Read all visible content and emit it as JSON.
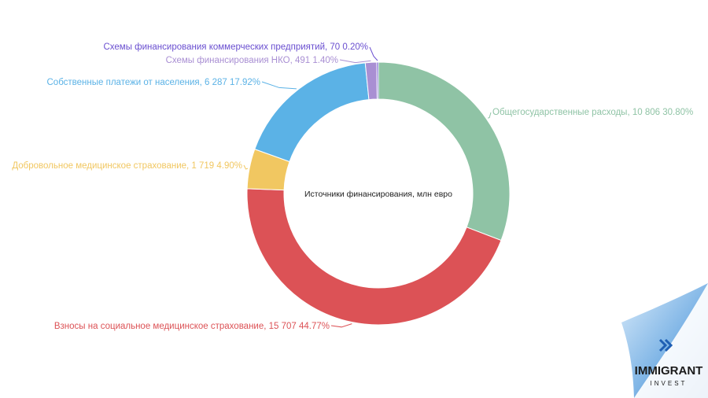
{
  "chart_data": {
    "type": "pie",
    "donut": true,
    "title": "Источники финансирования, млн евро",
    "slices": [
      {
        "name": "Общегосударственные расходы",
        "value": 10806,
        "value_label": "10 806",
        "percent": 30.8,
        "percent_label": "30.80%",
        "color": "#8fc3a5"
      },
      {
        "name": "Взносы на социальное медицинское страхование",
        "value": 15707,
        "value_label": "15 707",
        "percent": 44.77,
        "percent_label": "44.77%",
        "color": "#dc5256"
      },
      {
        "name": "Добровольное медицинское страхование",
        "value": 1719,
        "value_label": "1 719",
        "percent": 4.9,
        "percent_label": "4.90%",
        "color": "#f1c761"
      },
      {
        "name": "Собственные платежи от населения",
        "value": 6287,
        "value_label": "6 287",
        "percent": 17.92,
        "percent_label": "17.92%",
        "color": "#5bb2e6"
      },
      {
        "name": "Схемы финансирования НКО",
        "value": 491,
        "value_label": "491",
        "percent": 1.4,
        "percent_label": "1.40%",
        "color": "#a98fd3"
      },
      {
        "name": "Схемы финансирования коммерческих предприятий",
        "value": 70,
        "value_label": "70",
        "percent": 0.2,
        "percent_label": "0.20%",
        "color": "#6a4fd0"
      }
    ]
  },
  "labels": [
    "Общегосударственные расходы, 10 806 30.80%",
    "Взносы на социальное медицинское страхование, 15 707 44.77%",
    "Добровольное медицинское страхование, 1 719 4.90%",
    "Собственные платежи от населения, 6 287 17.92%",
    "Схемы финансирования НКО, 491 1.40%",
    "Схемы финансирования коммерческих предприятий, 70 0.20%"
  ],
  "logo": {
    "line1": "IMMIGRANT",
    "line2": "INVEST",
    "colors": {
      "blue": "#2b6fc0",
      "light": "#9cc6ec"
    }
  }
}
